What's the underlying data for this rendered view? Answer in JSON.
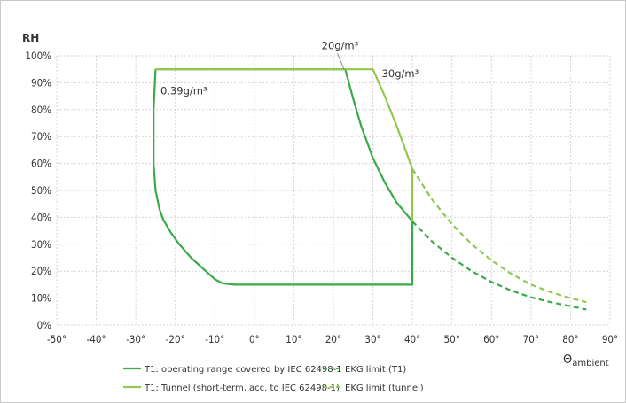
{
  "chart_data": {
    "type": "line",
    "ylabel": "RH",
    "xlabel_main": "Θ",
    "xlabel_sub": "ambient",
    "xlim": [
      -50,
      90
    ],
    "ylim": [
      0,
      100
    ],
    "x_ticks": [
      {
        "value": -50,
        "label": "-50°"
      },
      {
        "value": -40,
        "label": "-40°"
      },
      {
        "value": -30,
        "label": "-30°"
      },
      {
        "value": -20,
        "label": "-20°"
      },
      {
        "value": -10,
        "label": "-10°"
      },
      {
        "value": 0,
        "label": "0°"
      },
      {
        "value": 10,
        "label": "10°"
      },
      {
        "value": 20,
        "label": "20°"
      },
      {
        "value": 30,
        "label": "30°"
      },
      {
        "value": 40,
        "label": "40°"
      },
      {
        "value": 50,
        "label": "50°"
      },
      {
        "value": 60,
        "label": "60°"
      },
      {
        "value": 70,
        "label": "70°"
      },
      {
        "value": 80,
        "label": "80°"
      },
      {
        "value": 90,
        "label": "90°"
      }
    ],
    "y_ticks": [
      {
        "value": 0,
        "label": "0%"
      },
      {
        "value": 10,
        "label": "10%"
      },
      {
        "value": 20,
        "label": "20%"
      },
      {
        "value": 30,
        "label": "30%"
      },
      {
        "value": 40,
        "label": "40%"
      },
      {
        "value": 50,
        "label": "50%"
      },
      {
        "value": 60,
        "label": "60%"
      },
      {
        "value": 70,
        "label": "70%"
      },
      {
        "value": 80,
        "label": "80%"
      },
      {
        "value": 90,
        "label": "90%"
      },
      {
        "value": 100,
        "label": "100%"
      }
    ],
    "grid": true,
    "series": [
      {
        "name": "T1: operating range covered by IEC 62498-1",
        "color": "#3aaa4a",
        "style": "solid",
        "points": [
          [
            -25,
            95
          ],
          [
            23,
            95
          ],
          [
            25,
            84
          ],
          [
            27,
            74
          ],
          [
            30,
            62
          ],
          [
            33,
            53
          ],
          [
            36,
            45.5
          ],
          [
            38,
            42
          ],
          [
            40,
            38.5
          ],
          [
            40,
            15
          ],
          [
            -5,
            15
          ],
          [
            -8,
            15.5
          ],
          [
            -10,
            17
          ],
          [
            -13,
            21
          ],
          [
            -16,
            25
          ],
          [
            -19,
            30
          ],
          [
            -21,
            34
          ],
          [
            -23,
            39
          ],
          [
            -24,
            43
          ],
          [
            -25,
            50
          ],
          [
            -25.5,
            60
          ],
          [
            -25.5,
            80
          ],
          [
            -25,
            95
          ]
        ]
      },
      {
        "name": "T1: Tunnel (short-term, acc. to IEC 62498-1)",
        "color": "#93c84f",
        "style": "solid",
        "points": [
          [
            -25,
            95
          ],
          [
            30,
            95
          ],
          [
            33,
            85
          ],
          [
            36,
            74
          ],
          [
            38,
            66
          ],
          [
            40,
            58
          ],
          [
            40,
            38.5
          ]
        ]
      },
      {
        "name": "EKG limit (T1)",
        "color": "#3aaa4a",
        "style": "dashed",
        "points": [
          [
            40,
            38.5
          ],
          [
            45,
            31
          ],
          [
            50,
            25
          ],
          [
            55,
            20
          ],
          [
            60,
            16
          ],
          [
            65,
            12.8
          ],
          [
            70,
            10.3
          ],
          [
            75,
            8.5
          ],
          [
            80,
            7
          ],
          [
            84,
            5.8
          ]
        ]
      },
      {
        "name": "EKG limit (tunnel)",
        "color": "#93c84f",
        "style": "dashed",
        "points": [
          [
            40,
            58
          ],
          [
            45,
            46.5
          ],
          [
            50,
            37.5
          ],
          [
            55,
            30
          ],
          [
            60,
            24
          ],
          [
            65,
            19
          ],
          [
            70,
            15
          ],
          [
            75,
            12.2
          ],
          [
            80,
            10
          ],
          [
            84,
            8.5
          ]
        ]
      }
    ],
    "annotations": [
      {
        "text": "0.39g/m³",
        "x": -26,
        "y": 87
      },
      {
        "text": "20g/m³",
        "x": 23,
        "y": 95,
        "label_x": 17,
        "label_y": 102.5
      },
      {
        "text": "30g/m³",
        "x": 30,
        "y": 93.5
      }
    ],
    "legend_placement": "bottom"
  }
}
